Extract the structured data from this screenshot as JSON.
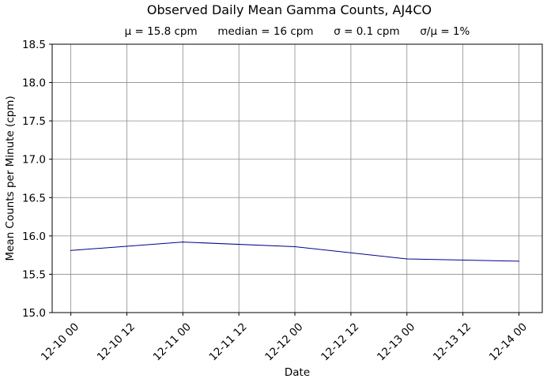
{
  "chart_data": {
    "type": "line",
    "title": "Observed Daily Mean Gamma Counts, AJ4CO",
    "subtitle": "μ = 15.8 cpm      median = 16 cpm      σ = 0.1 cpm      σ/μ = 1%",
    "xlabel": "Date",
    "ylabel": "Mean Counts per Minute (cpm)",
    "x_scale": "date",
    "xlim": [
      "2016-12-09T20:00",
      "2016-12-14T05:00"
    ],
    "ylim": [
      15.0,
      18.5
    ],
    "x_ticks": [
      {
        "x": "2016-12-10T00:00",
        "label": "12-10 00"
      },
      {
        "x": "2016-12-10T12:00",
        "label": "12-10 12"
      },
      {
        "x": "2016-12-11T00:00",
        "label": "12-11 00"
      },
      {
        "x": "2016-12-11T12:00",
        "label": "12-11 12"
      },
      {
        "x": "2016-12-12T00:00",
        "label": "12-12 00"
      },
      {
        "x": "2016-12-12T12:00",
        "label": "12-12 12"
      },
      {
        "x": "2016-12-13T00:00",
        "label": "12-13 00"
      },
      {
        "x": "2016-12-13T12:00",
        "label": "12-13 12"
      },
      {
        "x": "2016-12-14T00:00",
        "label": "12-14 00"
      }
    ],
    "y_ticks": [
      {
        "y": 15.0,
        "label": "15.0"
      },
      {
        "y": 15.5,
        "label": "15.5"
      },
      {
        "y": 16.0,
        "label": "16.0"
      },
      {
        "y": 16.5,
        "label": "16.5"
      },
      {
        "y": 17.0,
        "label": "17.0"
      },
      {
        "y": 17.5,
        "label": "17.5"
      },
      {
        "y": 18.0,
        "label": "18.0"
      },
      {
        "y": 18.5,
        "label": "18.5"
      }
    ],
    "grid": true,
    "series": [
      {
        "color": "#00008b",
        "x": [
          "2016-12-10T00:00",
          "2016-12-11T00:00",
          "2016-12-12T00:00",
          "2016-12-13T00:00",
          "2016-12-14T00:00"
        ],
        "y": [
          15.81,
          15.92,
          15.86,
          15.7,
          15.67
        ]
      }
    ]
  }
}
